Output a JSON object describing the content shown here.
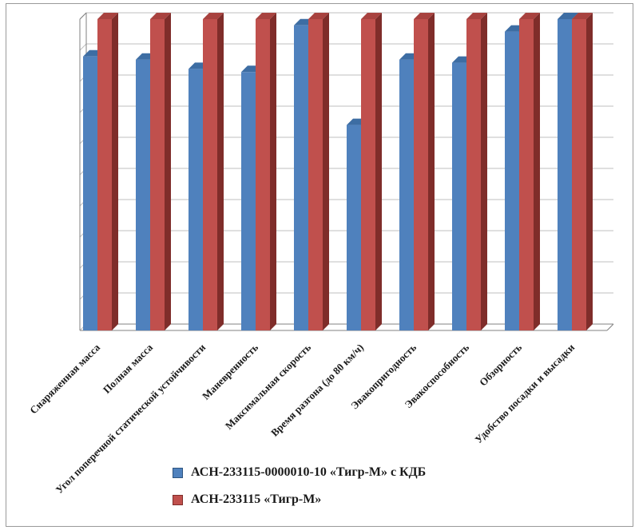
{
  "chart_data": {
    "type": "bar",
    "style": "3d-column",
    "title": "",
    "xlabel": "",
    "ylabel": "",
    "categories": [
      "Снаряженная масса",
      "Полная масса",
      "Угол поперечной статической устойчивости",
      "Маневренность",
      "Максимальная скорость",
      "Время разгона (до 80 км/ч)",
      "Эвакопригодность",
      "Эвакоспособность",
      "Обзорность",
      "Удобство посадки и высадки"
    ],
    "series": [
      {
        "name": "АСН-233115-0000010-10 «Тигр-М» с КДБ",
        "color": "#4F81BD",
        "color_top": "#3D6DA3",
        "color_side": "#2E5580",
        "values": [
          8.8,
          8.7,
          8.4,
          8.3,
          9.8,
          6.6,
          8.7,
          8.6,
          9.6,
          10
        ]
      },
      {
        "name": "АСН-233115 «Тигр-М»",
        "color": "#C0504D",
        "color_top": "#A8423F",
        "color_side": "#7F2D2A",
        "values": [
          10,
          10,
          10,
          10,
          10,
          10,
          10,
          10,
          10,
          10
        ]
      }
    ],
    "ylim": [
      0,
      10
    ],
    "grid": true,
    "gridline_count": 11,
    "legend_position": "bottom",
    "axis_color": "#808080",
    "grid_color": "#BFBFBF",
    "label_color": "#1a1a1a"
  }
}
